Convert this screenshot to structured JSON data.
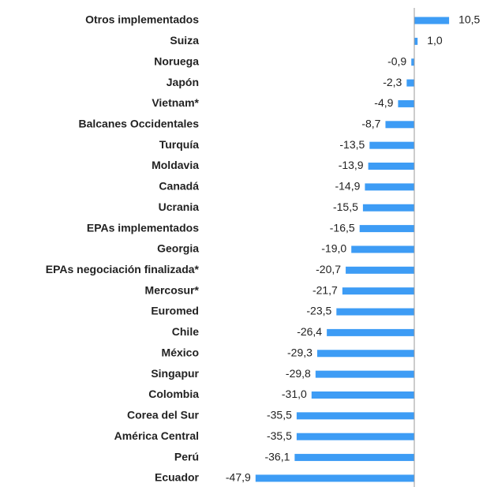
{
  "chart_data": {
    "type": "barh",
    "categories": [
      "Otros implementados",
      "Suiza",
      "Noruega",
      "Japón",
      "Vietnam*",
      "Balcanes Occidentales",
      "Turquía",
      "Moldavia",
      "Canadá",
      "Ucrania",
      "EPAs implementados",
      "Georgia",
      "EPAs negociación finalizada*",
      "Mercosur*",
      "Euromed",
      "Chile",
      "México",
      "Singapur",
      "Colombia",
      "Corea del Sur",
      "América Central",
      "Perú",
      "Ecuador"
    ],
    "values": [
      10.5,
      1.0,
      -0.9,
      -2.3,
      -4.9,
      -8.7,
      -13.5,
      -13.9,
      -14.9,
      -15.5,
      -16.5,
      -19.0,
      -20.7,
      -21.7,
      -23.5,
      -26.4,
      -29.3,
      -29.8,
      -31.0,
      -35.5,
      -35.5,
      -36.1,
      -47.9
    ],
    "value_labels": [
      "10,5",
      "1,0",
      "-0,9",
      "-2,3",
      "-4,9",
      "-8,7",
      "-13,5",
      "-13,9",
      "-14,9",
      "-15,5",
      "-16,5",
      "-19,0",
      "-20,7",
      "-21,7",
      "-23,5",
      "-26,4",
      "-29,3",
      "-29,8",
      "-31,0",
      "-35,5",
      "-35,5",
      "-36,1",
      "-47,9"
    ],
    "color": "#3d9cf5",
    "xlim": [
      -50,
      15
    ]
  }
}
